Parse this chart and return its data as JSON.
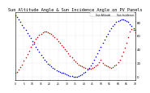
{
  "title": "Sun Altitude Angle & Sun Incidence Angle on PV Panels",
  "title_fontsize": 3.8,
  "blue_label": "Sun Altitude",
  "red_label": "Sun Incidence",
  "background_color": "#ffffff",
  "blue_color": "#0000cc",
  "red_color": "#cc0000",
  "blue_x": [
    0,
    1,
    2,
    3,
    4,
    5,
    6,
    7,
    8,
    9,
    10,
    11,
    12,
    13,
    14,
    15,
    16,
    17,
    18,
    19,
    20,
    21,
    22,
    23,
    24,
    25,
    26,
    27,
    28,
    29,
    30,
    31,
    32,
    33,
    34,
    35,
    36,
    37,
    38,
    39,
    40,
    41,
    42,
    43,
    44,
    45,
    46,
    47,
    48,
    49,
    50,
    51,
    52,
    53,
    54,
    55,
    56,
    57,
    58,
    59,
    60,
    61,
    62,
    63,
    64,
    65,
    66,
    67,
    68,
    69,
    70
  ],
  "blue_y": [
    90,
    87,
    84,
    80,
    76,
    72,
    68,
    64,
    60,
    56,
    52,
    48,
    44,
    40,
    36,
    32,
    28,
    25,
    22,
    19,
    17,
    15,
    13,
    11,
    9,
    8,
    7,
    6,
    5,
    4,
    3,
    2,
    1,
    1,
    0,
    0,
    0,
    1,
    2,
    3,
    5,
    7,
    10,
    13,
    16,
    20,
    24,
    29,
    34,
    39,
    44,
    49,
    54,
    59,
    63,
    67,
    71,
    74,
    77,
    80,
    82,
    83,
    84,
    84,
    83,
    82,
    80,
    77,
    74,
    71,
    68
  ],
  "red_x": [
    0,
    1,
    2,
    3,
    4,
    5,
    6,
    7,
    8,
    9,
    10,
    11,
    12,
    13,
    14,
    15,
    16,
    17,
    18,
    19,
    20,
    21,
    22,
    23,
    24,
    25,
    26,
    27,
    28,
    29,
    30,
    31,
    32,
    33,
    34,
    35,
    36,
    37,
    38,
    39,
    40,
    41,
    42,
    43,
    44,
    45,
    46,
    47,
    48,
    49,
    50,
    51,
    52,
    53,
    54,
    55,
    56,
    57,
    58,
    59,
    60,
    61,
    62,
    63,
    64,
    65,
    66,
    67,
    68,
    69,
    70
  ],
  "red_y": [
    5,
    7,
    10,
    14,
    18,
    23,
    28,
    33,
    38,
    43,
    47,
    51,
    55,
    58,
    61,
    63,
    65,
    66,
    66,
    65,
    64,
    62,
    60,
    58,
    55,
    52,
    49,
    46,
    43,
    40,
    37,
    34,
    31,
    28,
    25,
    22,
    20,
    18,
    16,
    15,
    14,
    13,
    12,
    12,
    12,
    13,
    14,
    16,
    18,
    21,
    24,
    20,
    18,
    16,
    15,
    14,
    13,
    14,
    16,
    18,
    21,
    25,
    30,
    36,
    42,
    50,
    58,
    66,
    70,
    68,
    65
  ],
  "ylim": [
    -5,
    95
  ],
  "xlim": [
    0,
    70
  ],
  "yticks": [
    0,
    20,
    40,
    60,
    80
  ],
  "yticklabels": [
    "0",
    "20",
    "40",
    "60",
    "80"
  ],
  "grid_color": "#bbbbbb",
  "dot_size": 1.2,
  "marker_size": 1.2
}
